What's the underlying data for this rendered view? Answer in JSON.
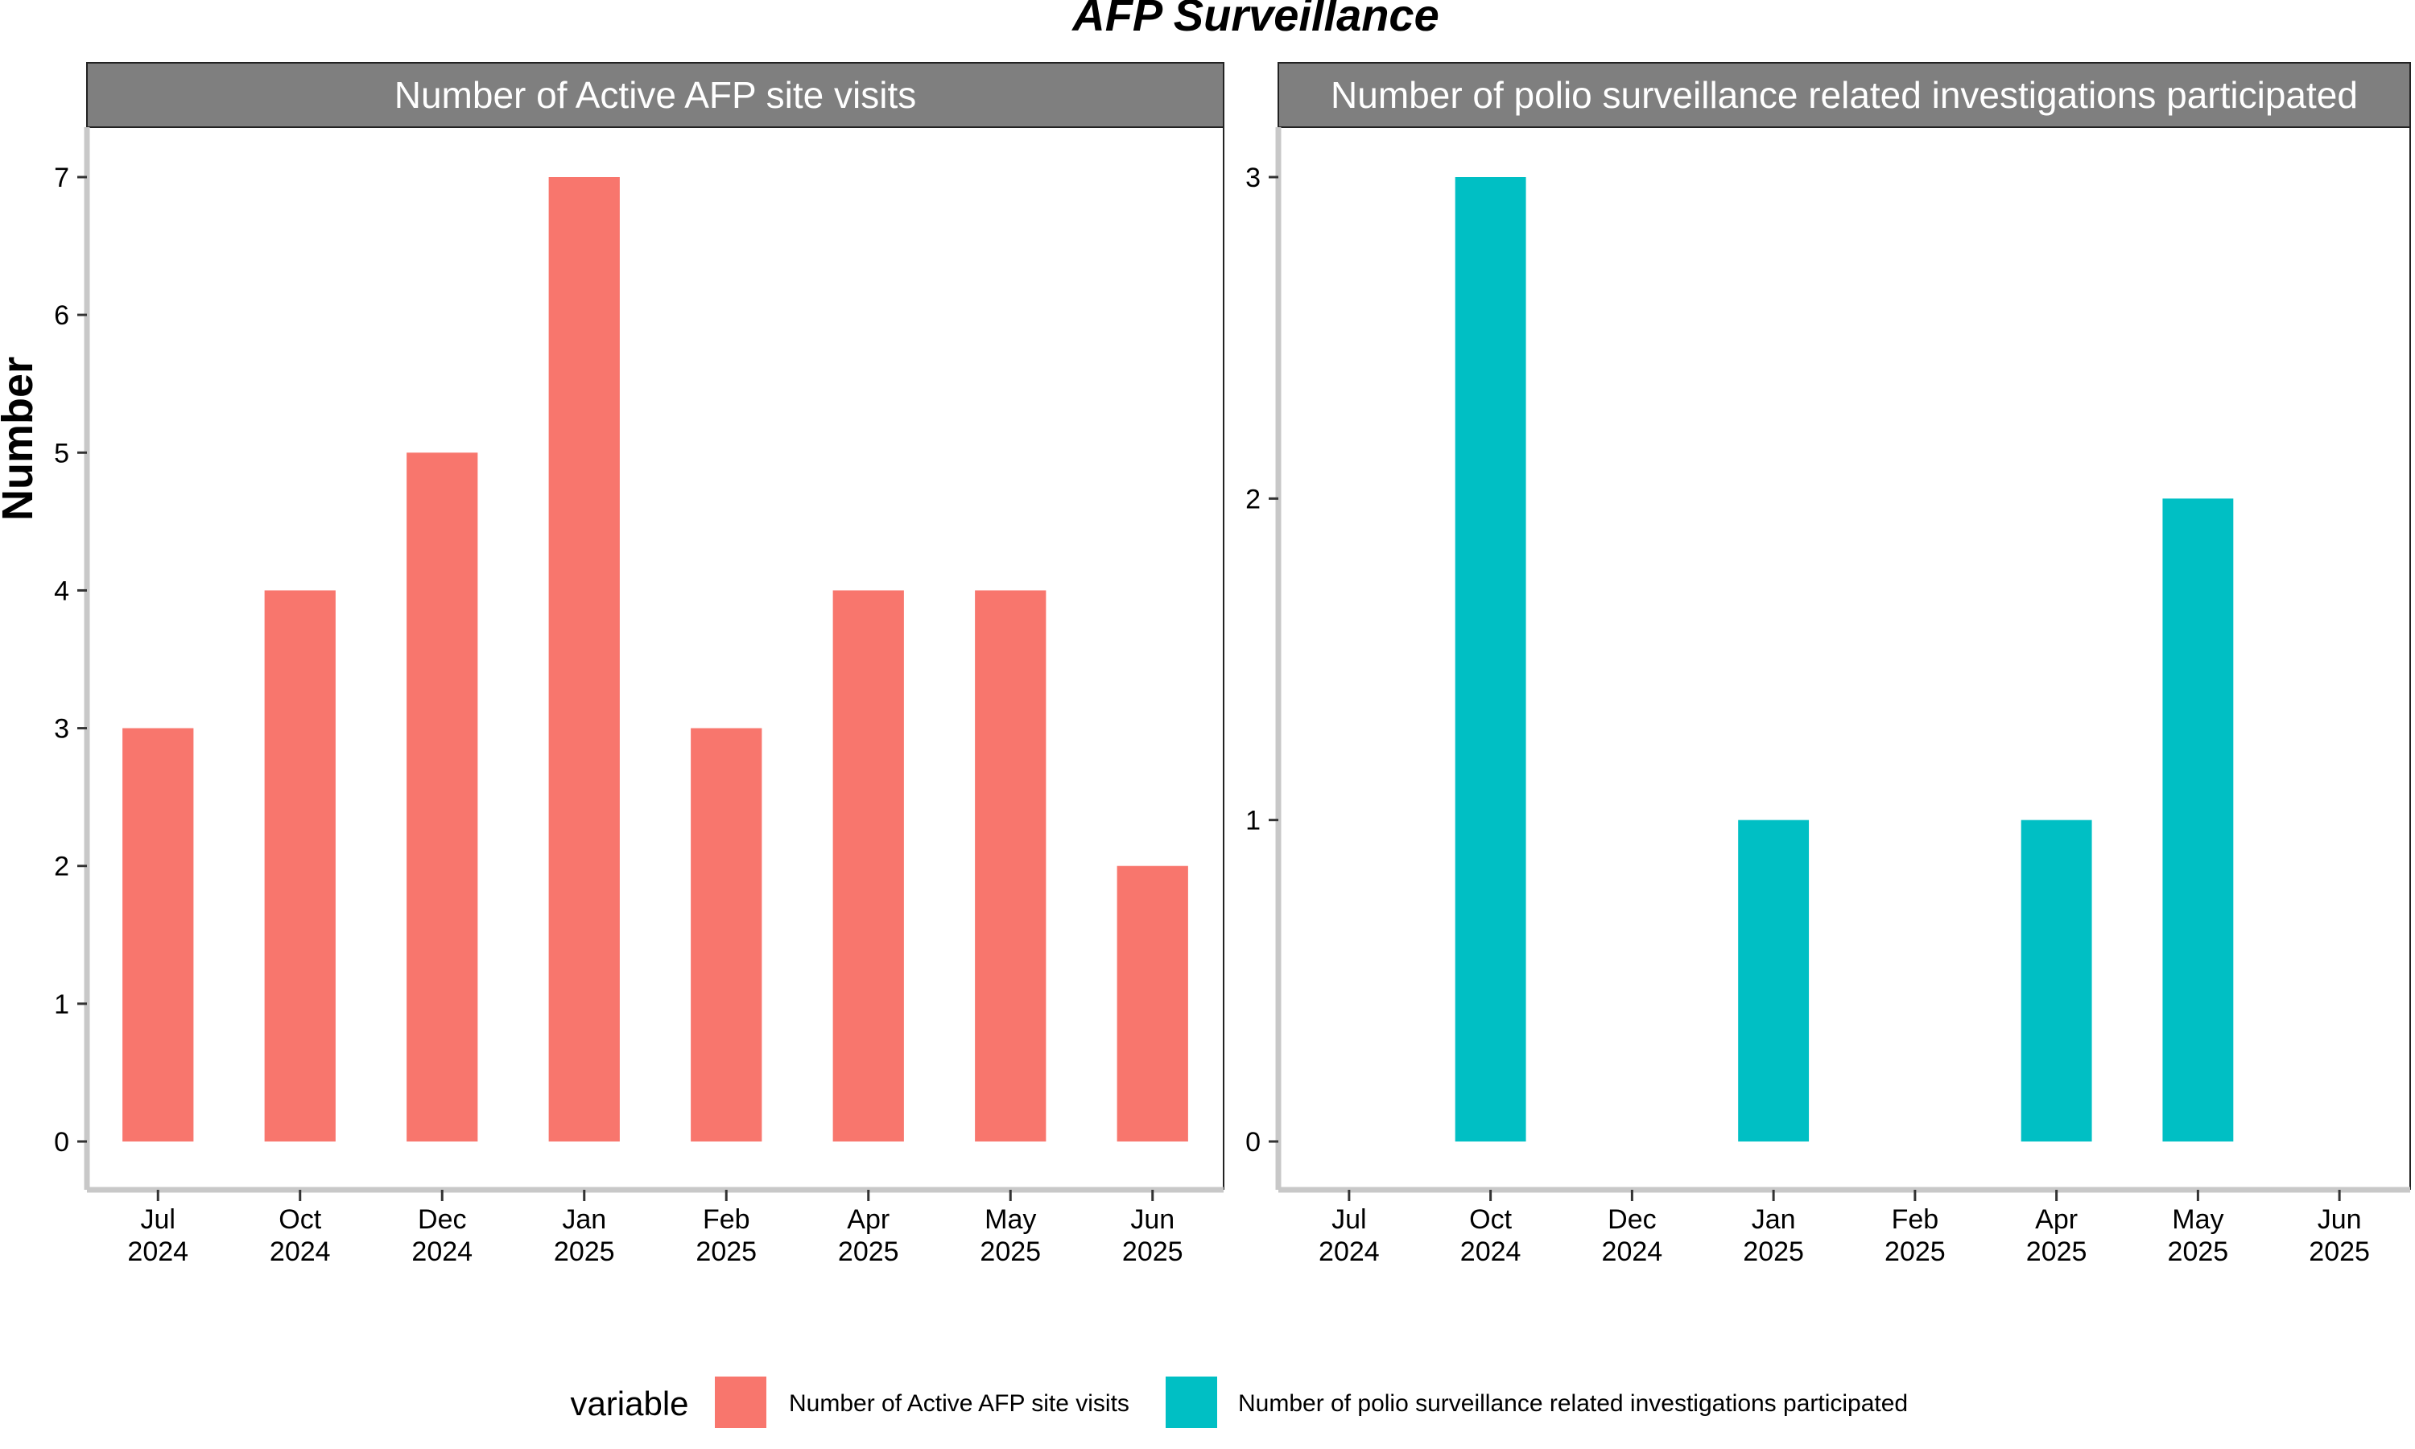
{
  "title": "AFP Surveillance",
  "ylabel": "Number",
  "colors": {
    "series_1": "#F8766D",
    "series_2": "#00BFC4",
    "strip_bg": "#7F7F7F",
    "axis": "#C8C8C8"
  },
  "chart_data": [
    {
      "type": "bar",
      "title": "Number of Active AFP site visits",
      "x_ticks": [
        {
          "month": "Jul",
          "year": "2024"
        },
        {
          "month": "Oct",
          "year": "2024"
        },
        {
          "month": "Dec",
          "year": "2024"
        },
        {
          "month": "Jan",
          "year": "2025"
        },
        {
          "month": "Feb",
          "year": "2025"
        },
        {
          "month": "Apr",
          "year": "2025"
        },
        {
          "month": "May",
          "year": "2025"
        },
        {
          "month": "Jun",
          "year": "2025"
        }
      ],
      "values": [
        3,
        4,
        5,
        7,
        3,
        4,
        4,
        2
      ],
      "y_ticks": [
        "0",
        "1",
        "2",
        "3",
        "4",
        "5",
        "6",
        "7"
      ],
      "ylim": [
        0,
        7
      ],
      "color": "#F8766D"
    },
    {
      "type": "bar",
      "title": "Number of polio surveillance related investigations participated",
      "x_ticks": [
        {
          "month": "Jul",
          "year": "2024"
        },
        {
          "month": "Oct",
          "year": "2024"
        },
        {
          "month": "Dec",
          "year": "2024"
        },
        {
          "month": "Jan",
          "year": "2025"
        },
        {
          "month": "Feb",
          "year": "2025"
        },
        {
          "month": "Apr",
          "year": "2025"
        },
        {
          "month": "May",
          "year": "2025"
        },
        {
          "month": "Jun",
          "year": "2025"
        }
      ],
      "values": [
        0,
        3,
        0,
        1,
        0,
        1,
        2,
        0
      ],
      "y_ticks": [
        "0",
        "1",
        "2",
        "3"
      ],
      "ylim": [
        0,
        3
      ],
      "color": "#00BFC4"
    }
  ],
  "legend": {
    "title": "variable",
    "position": "bottom",
    "items": [
      {
        "label": "Number of Active AFP site visits",
        "color": "#F8766D"
      },
      {
        "label": "Number of polio surveillance related investigations participated",
        "color": "#00BFC4"
      }
    ]
  }
}
